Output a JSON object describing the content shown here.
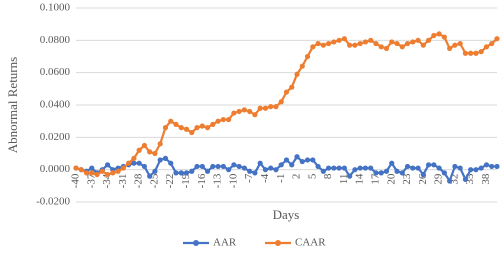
{
  "chart_data": {
    "type": "line",
    "x_label": "Days",
    "y_label": "Abnormal Returns",
    "categories": [
      -40,
      null,
      null,
      -37,
      null,
      null,
      -34,
      null,
      null,
      -31,
      null,
      null,
      -28,
      null,
      null,
      -25,
      null,
      null,
      -22,
      null,
      null,
      -19,
      null,
      null,
      -16,
      null,
      null,
      -13,
      null,
      null,
      -10,
      null,
      null,
      -7,
      null,
      null,
      -4,
      null,
      null,
      -1,
      null,
      null,
      2,
      null,
      null,
      5,
      null,
      null,
      8,
      null,
      null,
      11,
      null,
      null,
      14,
      null,
      null,
      17,
      null,
      null,
      20,
      null,
      null,
      23,
      null,
      null,
      26,
      null,
      null,
      29,
      null,
      null,
      32,
      null,
      null,
      35,
      null,
      null,
      38,
      null,
      null
    ],
    "series": [
      {
        "name": "AAR",
        "color": "#4472c4",
        "values": [
          0.001,
          0.0,
          -0.001,
          0.001,
          -0.002,
          0.0,
          0.003,
          0.0,
          0.001,
          0.002,
          0.003,
          0.004,
          0.004,
          0.002,
          -0.004,
          -0.001,
          0.006,
          0.007,
          0.004,
          -0.002,
          -0.002,
          -0.002,
          -0.001,
          0.002,
          0.002,
          -0.001,
          0.002,
          0.002,
          0.002,
          0.0,
          0.003,
          0.002,
          0.001,
          -0.001,
          -0.002,
          0.004,
          0.0,
          0.001,
          0.0,
          0.003,
          0.006,
          0.003,
          0.008,
          0.005,
          0.006,
          0.006,
          0.002,
          -0.001,
          0.001,
          0.001,
          0.001,
          0.001,
          -0.004,
          0.0,
          0.001,
          0.001,
          0.001,
          -0.002,
          -0.002,
          -0.001,
          0.004,
          -0.001,
          -0.002,
          0.002,
          0.001,
          0.001,
          -0.003,
          0.003,
          0.003,
          0.001,
          -0.002,
          -0.007,
          0.002,
          0.001,
          -0.006,
          0.0,
          0.0,
          0.001,
          0.003,
          0.002,
          0.002
        ]
      },
      {
        "name": "CAAR",
        "color": "#ed7d31",
        "values": [
          0.001,
          0.0,
          -0.002,
          -0.002,
          -0.003,
          -0.001,
          -0.003,
          -0.002,
          -0.001,
          0.001,
          0.004,
          0.007,
          0.012,
          0.015,
          0.011,
          0.01,
          0.016,
          0.026,
          0.03,
          0.028,
          0.026,
          0.025,
          0.023,
          0.026,
          0.027,
          0.026,
          0.028,
          0.03,
          0.031,
          0.031,
          0.035,
          0.036,
          0.037,
          0.036,
          0.034,
          0.038,
          0.038,
          0.039,
          0.039,
          0.042,
          0.048,
          0.051,
          0.059,
          0.064,
          0.07,
          0.076,
          0.078,
          0.077,
          0.078,
          0.079,
          0.08,
          0.081,
          0.077,
          0.077,
          0.078,
          0.079,
          0.08,
          0.078,
          0.076,
          0.075,
          0.079,
          0.078,
          0.076,
          0.078,
          0.079,
          0.08,
          0.077,
          0.08,
          0.083,
          0.084,
          0.082,
          0.075,
          0.077,
          0.078,
          0.072,
          0.072,
          0.072,
          0.073,
          0.076,
          0.078,
          0.081
        ]
      }
    ],
    "ylim": [
      -0.02,
      0.1
    ],
    "yticks": [
      {
        "value": -0.02,
        "label": "-0.0200"
      },
      {
        "value": 0,
        "label": "0.0000"
      },
      {
        "value": 0.02,
        "label": "0.0200"
      },
      {
        "value": 0.04,
        "label": "0.0400"
      },
      {
        "value": 0.06,
        "label": "0.0600"
      },
      {
        "value": 0.08,
        "label": "0.0800"
      },
      {
        "value": 0.1,
        "label": "0.1000"
      }
    ],
    "grid": true,
    "legend": "bottom"
  }
}
